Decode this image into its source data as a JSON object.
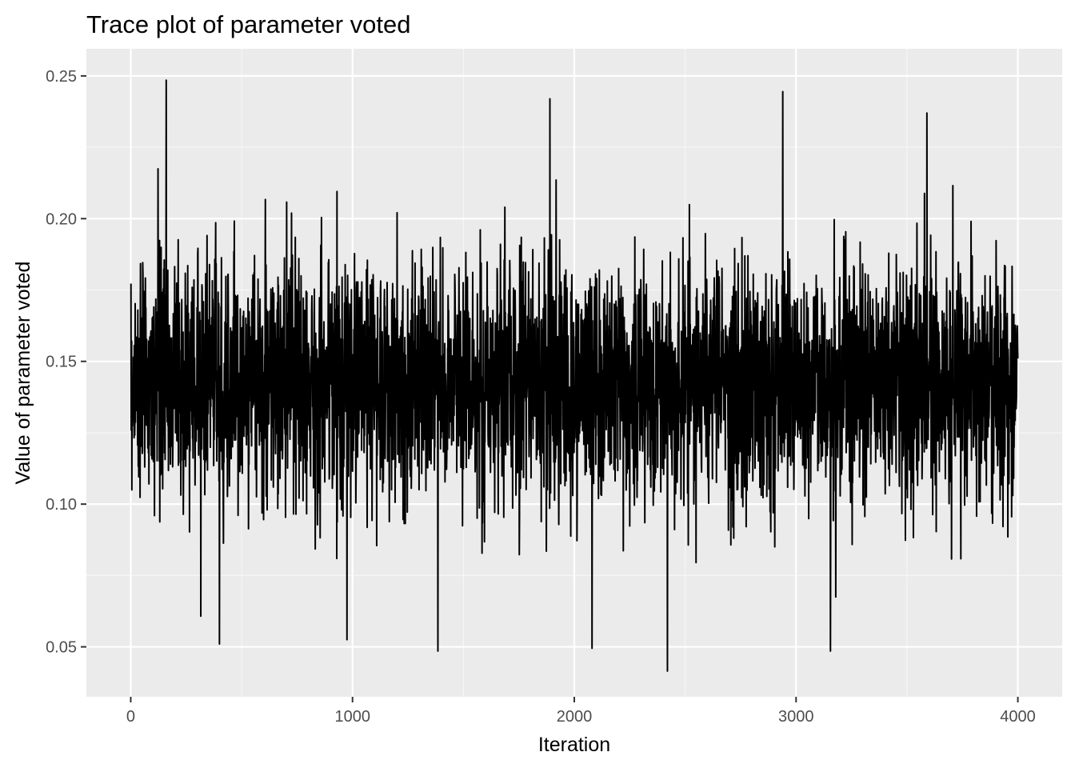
{
  "chart_data": {
    "type": "line",
    "title": "Trace plot of parameter voted",
    "xlabel": "Iteration",
    "ylabel": "Value of parameter voted",
    "xlim": [
      -200,
      4200
    ],
    "ylim": [
      0.0325,
      0.2595
    ],
    "x_ticks": [
      {
        "value": 0,
        "label": "0"
      },
      {
        "value": 1000,
        "label": "1000"
      },
      {
        "value": 2000,
        "label": "2000"
      },
      {
        "value": 3000,
        "label": "3000"
      },
      {
        "value": 4000,
        "label": "4000"
      }
    ],
    "x_minor": [
      500,
      1500,
      2500,
      3500
    ],
    "y_ticks": [
      {
        "value": 0.05,
        "label": "0.05"
      },
      {
        "value": 0.1,
        "label": "0.10"
      },
      {
        "value": 0.15,
        "label": "0.15"
      },
      {
        "value": 0.2,
        "label": "0.20"
      },
      {
        "value": 0.25,
        "label": "0.25"
      }
    ],
    "y_minor": [
      0.075,
      0.125,
      0.175,
      0.225
    ],
    "grid": true,
    "legend": "none",
    "series": [
      {
        "color": "#000000",
        "x_start": 1,
        "x_end": 4000,
        "summary": {
          "mean": 0.143,
          "sd": 0.021,
          "min": 0.0415,
          "max": 0.2485
        },
        "extremes": [
          {
            "x": 160,
            "y": 0.2485
          },
          {
            "x": 1890,
            "y": 0.242
          },
          {
            "x": 2940,
            "y": 0.2445
          },
          {
            "x": 3590,
            "y": 0.237
          },
          {
            "x": 2420,
            "y": 0.0415
          },
          {
            "x": 1385,
            "y": 0.0485
          },
          {
            "x": 3155,
            "y": 0.0485
          },
          {
            "x": 400,
            "y": 0.051
          },
          {
            "x": 975,
            "y": 0.0525
          },
          {
            "x": 2080,
            "y": 0.0495
          }
        ]
      }
    ]
  },
  "colors": {
    "panel_background": "#ebebeb",
    "grid_major": "#ffffff",
    "grid_minor": "#f7f7f7",
    "tick_text": "#4d4d4d",
    "tick_mark": "#333333",
    "series": "#000000"
  }
}
